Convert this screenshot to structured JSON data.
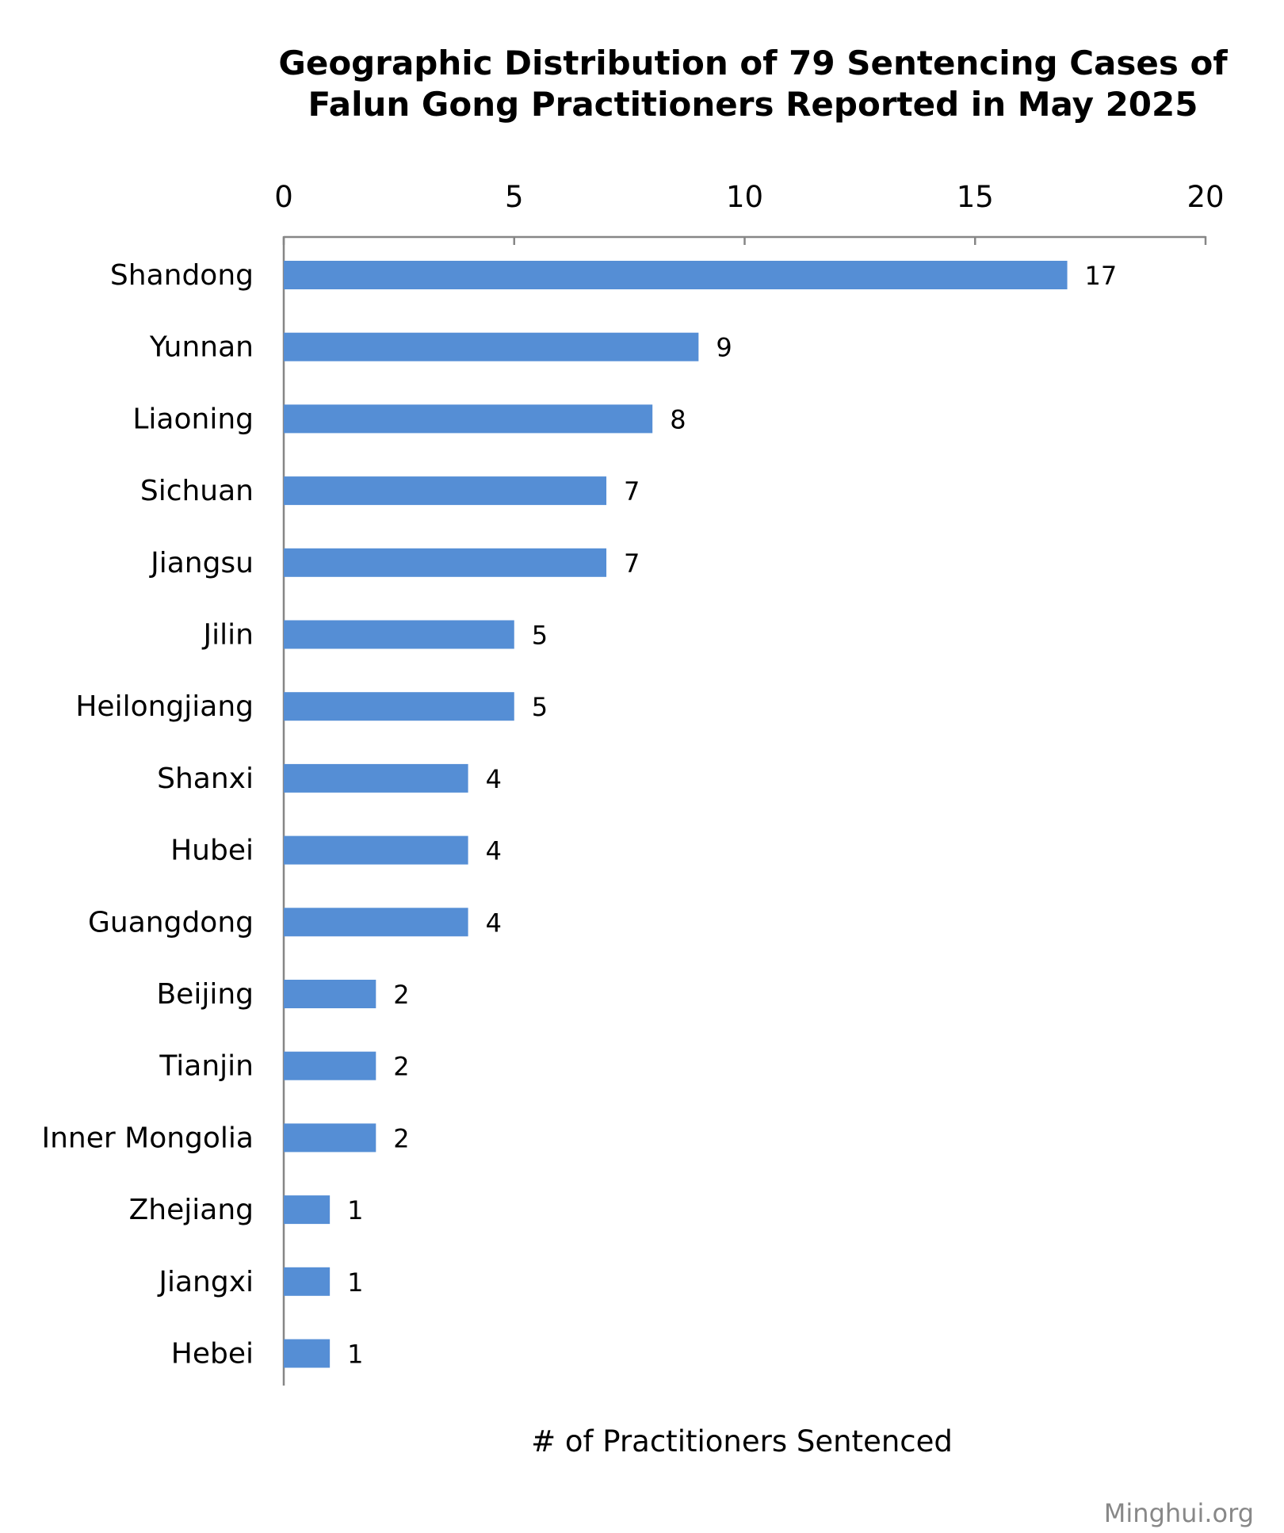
{
  "chart_data": {
    "type": "bar",
    "orientation": "horizontal",
    "title_line1": "Geographic Distribution of 79 Sentencing Cases of",
    "title_line2": "Falun Gong Practitioners Reported in May 2025",
    "xlabel": "# of Practitioners Sentenced",
    "xlim": [
      0,
      20
    ],
    "xticks": [
      0,
      5,
      10,
      15,
      20
    ],
    "x_axis_position": "top",
    "grid": false,
    "bar_color": "#558ed5",
    "categories": [
      "Shandong",
      "Yunnan",
      "Liaoning",
      "Sichuan",
      "Jiangsu",
      "Jilin",
      "Heilongjiang",
      "Shanxi",
      "Hubei",
      "Guangdong",
      "Beijing",
      "Tianjin",
      "Inner Mongolia",
      "Zhejiang",
      "Jiangxi",
      "Hebei"
    ],
    "values": [
      17,
      9,
      8,
      7,
      7,
      5,
      5,
      4,
      4,
      4,
      2,
      2,
      2,
      1,
      1,
      1
    ],
    "data_labels": true
  },
  "watermark": "Minghui.org"
}
